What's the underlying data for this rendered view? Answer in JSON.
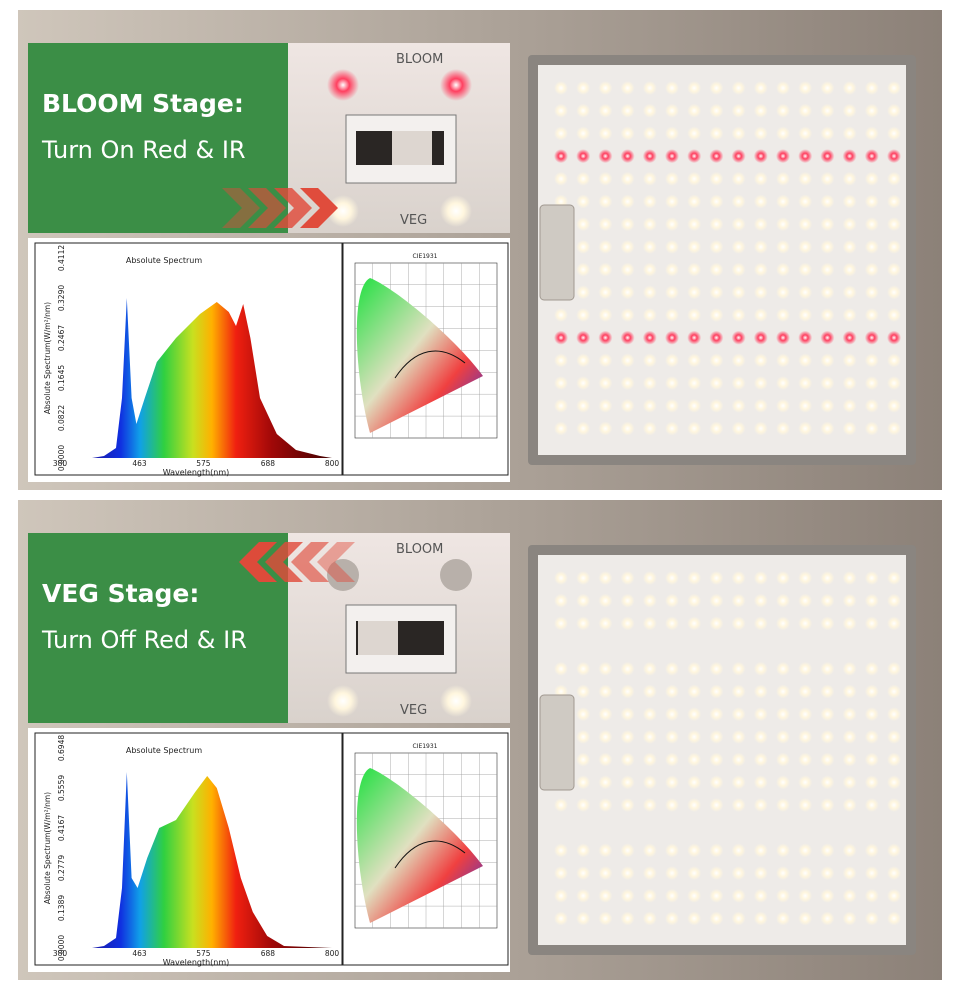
{
  "panels": [
    {
      "stage": "BLOOM Stage:",
      "instruction": "Turn On Red & IR",
      "switch_labels": [
        "BLOOM",
        "VEG"
      ],
      "spectrum": {
        "title": "Absolute Spectrum",
        "y_label": "Absolute Spectrum(W/m²/nm)",
        "x_label": "Wavelength(nm)",
        "y_ticks": [
          "0.0000",
          "0.0822",
          "0.1645",
          "0.2467",
          "0.3290",
          "0.4112"
        ],
        "x_ticks": [
          "380",
          "463",
          "575",
          "688",
          "800"
        ]
      },
      "cie": {
        "title": "CIE1931"
      }
    },
    {
      "stage": "VEG Stage:",
      "instruction": "Turn Off Red & IR",
      "switch_labels": [
        "BLOOM",
        "VEG"
      ],
      "spectrum": {
        "title": "Absolute Spectrum",
        "y_label": "Absolute Spectrum(W/m²/nm)",
        "x_label": "Wavelength(nm)",
        "y_ticks": [
          "0.0000",
          "0.1389",
          "0.2779",
          "0.4167",
          "0.5559",
          "0.6948"
        ],
        "x_ticks": [
          "380",
          "463",
          "575",
          "688",
          "800"
        ]
      },
      "cie": {
        "title": "CIE1931"
      }
    }
  ]
}
